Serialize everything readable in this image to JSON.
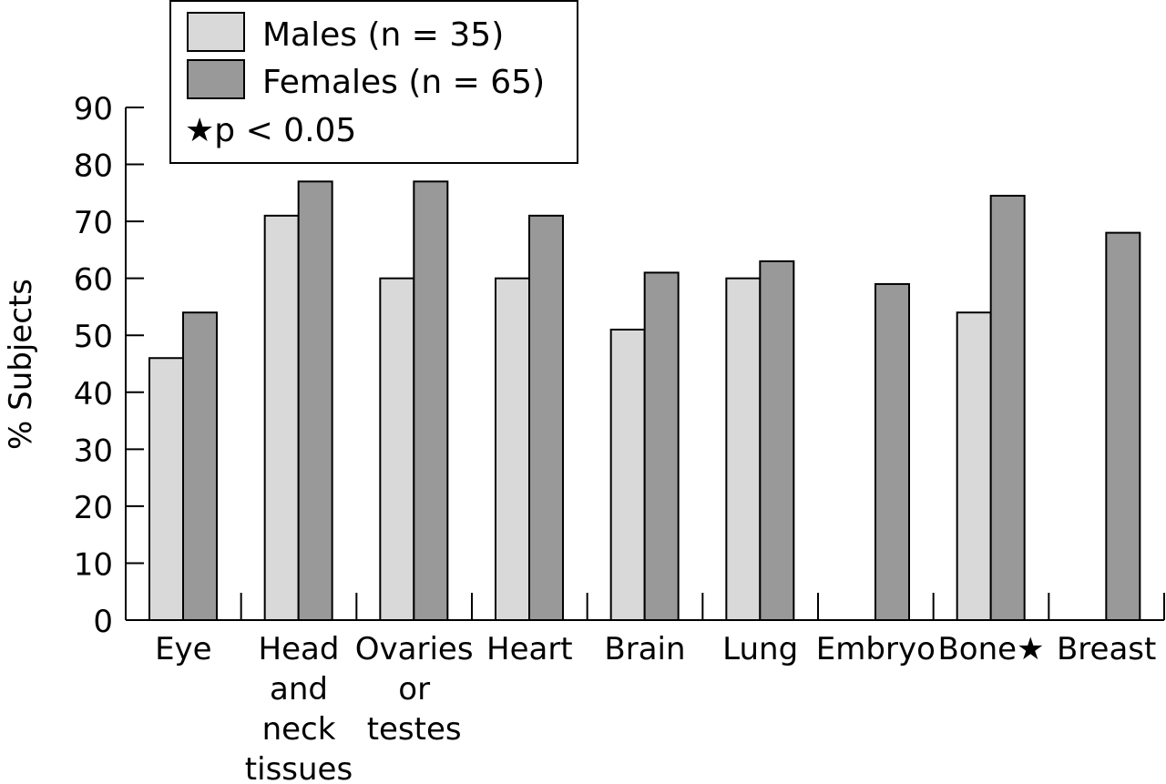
{
  "chart_data": {
    "type": "bar",
    "ylabel": "% Subjects",
    "ylim": [
      0,
      90
    ],
    "yticks": [
      0,
      10,
      20,
      30,
      40,
      50,
      60,
      70,
      80,
      90
    ],
    "categories": [
      [
        "Eye"
      ],
      [
        "Head",
        "and",
        "neck",
        "tissues"
      ],
      [
        "Ovaries",
        "or",
        "testes"
      ],
      [
        "Heart"
      ],
      [
        "Brain"
      ],
      [
        "Lung"
      ],
      [
        "Embryo"
      ],
      [
        "Bone★"
      ],
      [
        "Breast"
      ]
    ],
    "series": [
      {
        "name": "Males (n = 35)",
        "color": "#d9d9d9",
        "values": [
          46,
          71,
          60,
          60,
          51,
          60,
          null,
          54,
          null
        ]
      },
      {
        "name": "Females (n = 65)",
        "color": "#999999",
        "values": [
          54,
          77,
          77,
          71,
          61,
          63,
          59,
          74.5,
          68
        ]
      }
    ],
    "legend": {
      "position": "top-left",
      "note": "★p < 0.05"
    }
  }
}
